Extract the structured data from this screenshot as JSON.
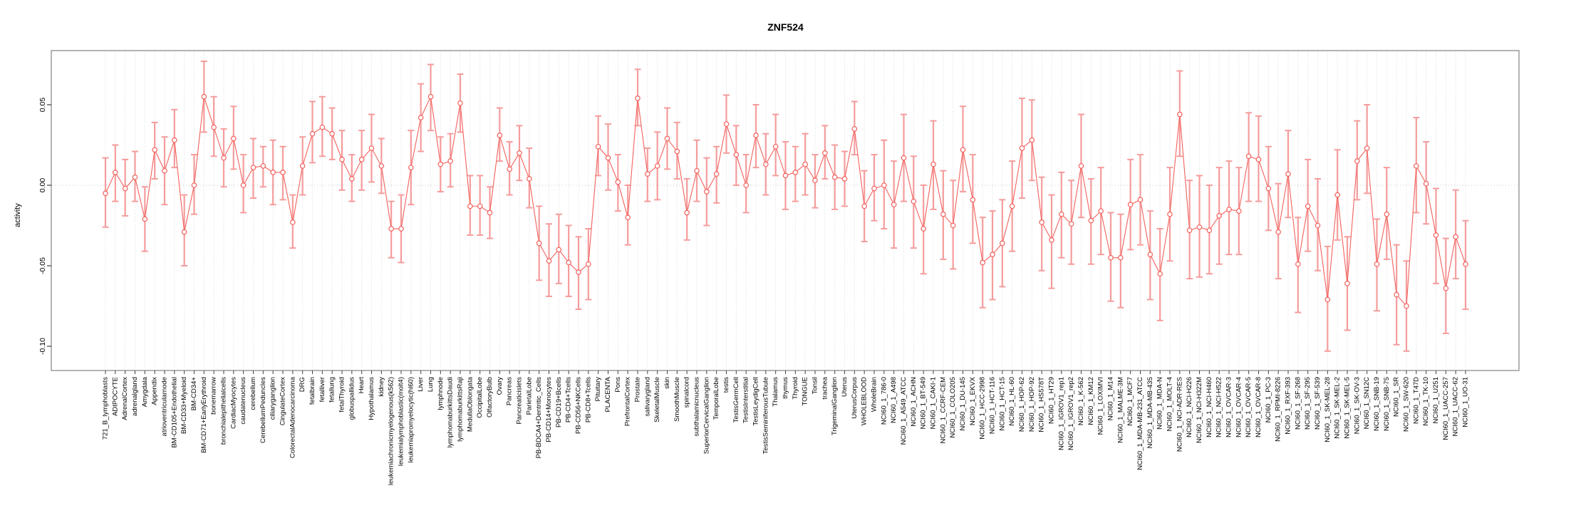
{
  "chart_data": {
    "type": "line",
    "title": "ZNF524",
    "ylabel": "activity",
    "xlabel": "",
    "ylim": [
      -0.115,
      0.084
    ],
    "yticks": [
      0.05,
      0.0,
      -0.05,
      -0.1
    ],
    "ytick_labels": [
      "0.05",
      "0.00",
      "-0.05",
      "-0.10"
    ],
    "grid": "light dotted vertical line per category; dotted horizontal line at 0",
    "legend": "none",
    "point_style": "open circles with error bars, connected by line",
    "series_color": "#f2615c",
    "errorbar_color": "#f59c9c",
    "categories": [
      "721_B_lymphoblasts",
      "ADIPOCYTE",
      "AdrenalCortex",
      "adrenalgland",
      "Amygdala",
      "Appendix",
      "atrioventricularnode",
      "BM-CD105+Endothelial",
      "BM-CD33+Myeloid",
      "BM-CD34+",
      "BM-CD71+EarlyErythroid",
      "bonemarrow",
      "bronchialepithelialcells",
      "CardiacMyocytes",
      "caudatenucleus",
      "cerebellum",
      "CerebellumPeduncles",
      "ciliaryganglion",
      "CingulateCortex",
      "ColorectalAdenocarcinoma",
      "DRG",
      "fetalbrain",
      "fetalliver",
      "fetallung",
      "fetalThyroid",
      "globuspallidus",
      "Heart",
      "Hypothalamus",
      "kidney",
      "leukemiachronicmyelogenous(k562)",
      "leukemialymphoblastic(molt4)",
      "leukemiapromyelocytic(hl60)",
      "Liver",
      "Lung",
      "lymphnode",
      "lymphomaburkittsDaudi",
      "lymphomaburkittsRaji",
      "MedullaOblongata",
      "OccipitalLobe",
      "OlfactoryBulb",
      "Ovary",
      "Pancreas",
      "Pancreaticislets",
      "ParietalLobe",
      "PB-BDCA4+Dentritic_Cells",
      "PB-CD14+Monocytes",
      "PB-CD19+Bcells",
      "PB-CD4+Tcells",
      "PB-CD56+NKCells",
      "PB-CD8+Tcells",
      "Pituitary",
      "PLACENTA",
      "Pons",
      "PrefrontalCortex",
      "Prostate",
      "salivarygland",
      "SkeletalMuscle",
      "skin",
      "SmoothMuscle",
      "spinalcord",
      "subthalamicnucleus",
      "SuperiorCervicalGanglion",
      "TemporalLobe",
      "testis",
      "TestisGermCell",
      "TestisInterstitial",
      "TestisLeydigCell",
      "TestisSeminiferousTubule",
      "Thalamus",
      "thymus",
      "Thyroid",
      "TONGUE",
      "Tonsil",
      "trachea",
      "TrigeminalGanglion",
      "Uterus",
      "UterusCorpus",
      "WHOLEBLOOD",
      "WholeBrain",
      "NCI60_1_786-0",
      "NCI60_1_A498",
      "NCI60_1_A549_ATCC",
      "NCI60_1_ACHN",
      "NCI60_1_BT-549",
      "NCI60_1_CAKI-1",
      "NCI60_1_CCRF-CEM",
      "NCI60_1_COLO205",
      "NCI60_1_DU-145",
      "NCI60_1_EKVX",
      "NCI60_1_HCC-2998",
      "NCI60_1_HCT-116",
      "NCI60_1_HCT-15",
      "NCI60_1_HL-60",
      "NCI60_1_HOP-62",
      "NCI60_1_HOP-92",
      "NCI60_1_HS578T",
      "NCI60_1_HT29",
      "NCI60_1_IGROV1_rep1",
      "NCI60_1_IGROV1_rep2",
      "NCI60_1_K-562",
      "NCI60_1_KM12",
      "NCI60_1_LOXIMVI",
      "NCI60_1_M14",
      "NCI60_1_MALME-3M",
      "NCI60_1_MCF7",
      "NCI60_1_MDA-MB-231_ATCC",
      "NCI60_1_MDA-MB-435",
      "NCI60_1_MDA-N",
      "NCI60_1_MOLT-4",
      "NCI60_1_NCI-ADR-RES",
      "NCI60_1_NCI-H226",
      "NCI60_1_NCI-H322M",
      "NCI60_1_NCI-H460",
      "NCI60_1_NCI-H522",
      "NCI60_1_OVCAR-3",
      "NCI60_1_OVCAR-4",
      "NCI60_1_OVCAR-5",
      "NCI60_1_OVCAR-8",
      "NCI60_1_PC-3",
      "NCI60_1_RPMI-8226",
      "NCI60_1_RXF-393",
      "NCI60_1_SF-268",
      "NCI60_1_SF-295",
      "NCI60_1_SF-539",
      "NCI60_1_SK-MEL-28",
      "NCI60_1_SK-MEL-2",
      "NCI60_1_SK-MEL-5",
      "NCI60_1_SK-OV-3",
      "NCI60_1_SN12C",
      "NCI60_1_SNB-19",
      "NCI60_1_SNB-75",
      "NCI60_1_SR",
      "NCI60_1_SW-620",
      "NCI60_1_T47D",
      "NCI60_1_TK-10",
      "NCI60_1_U251",
      "NCI60_1_UACC-257",
      "NCI60_1_UACC-62",
      "NCI60_1_UO-31"
    ],
    "values": [
      -0.005,
      0.008,
      -0.002,
      0.005,
      -0.021,
      0.022,
      0.009,
      0.028,
      -0.029,
      0.0,
      0.055,
      0.036,
      0.017,
      0.029,
      0.0,
      0.011,
      0.012,
      0.008,
      0.008,
      -0.023,
      0.012,
      0.032,
      0.036,
      0.032,
      0.016,
      0.004,
      0.016,
      0.023,
      0.012,
      -0.027,
      -0.027,
      0.011,
      0.042,
      0.055,
      0.013,
      0.015,
      0.051,
      -0.013,
      -0.013,
      -0.017,
      0.031,
      0.01,
      0.02,
      0.004,
      -0.036,
      -0.047,
      -0.04,
      -0.048,
      -0.054,
      -0.049,
      0.024,
      0.017,
      0.002,
      -0.02,
      0.054,
      0.007,
      0.012,
      0.029,
      0.021,
      -0.017,
      0.009,
      -0.004,
      0.007,
      0.038,
      0.019,
      0.0,
      0.031,
      0.013,
      0.024,
      0.006,
      0.008,
      0.013,
      0.003,
      0.02,
      0.005,
      0.004,
      0.035,
      -0.013,
      -0.002,
      0.0,
      -0.012,
      0.017,
      -0.01,
      -0.027,
      0.013,
      -0.018,
      -0.025,
      0.022,
      -0.009,
      -0.048,
      -0.043,
      -0.036,
      -0.013,
      0.023,
      0.028,
      -0.023,
      -0.034,
      -0.018,
      -0.024,
      0.012,
      -0.022,
      -0.016,
      -0.045,
      -0.045,
      -0.012,
      -0.009,
      -0.043,
      -0.055,
      -0.018,
      0.044,
      -0.028,
      -0.026,
      -0.028,
      -0.019,
      -0.015,
      -0.016,
      0.018,
      0.016,
      -0.002,
      -0.029,
      0.007,
      -0.049,
      -0.013,
      -0.025,
      -0.071,
      -0.006,
      -0.061,
      0.015,
      0.023,
      -0.049,
      -0.018,
      -0.068,
      -0.075,
      0.012,
      0.001,
      -0.031,
      -0.064,
      -0.032,
      -0.049
    ],
    "err_lo": [
      -0.026,
      -0.01,
      -0.019,
      -0.01,
      -0.041,
      0.004,
      -0.012,
      0.011,
      -0.05,
      -0.018,
      0.033,
      0.018,
      -0.001,
      0.01,
      -0.017,
      -0.008,
      -0.001,
      -0.012,
      -0.009,
      -0.039,
      -0.006,
      0.014,
      0.018,
      0.016,
      -0.003,
      -0.01,
      -0.003,
      0.002,
      -0.005,
      -0.045,
      -0.048,
      -0.012,
      0.021,
      0.034,
      -0.004,
      -0.001,
      0.033,
      -0.031,
      -0.031,
      -0.033,
      0.015,
      -0.006,
      0.003,
      -0.014,
      -0.059,
      -0.069,
      -0.061,
      -0.069,
      -0.077,
      -0.071,
      0.006,
      -0.003,
      -0.016,
      -0.037,
      0.037,
      -0.01,
      -0.009,
      0.01,
      0.004,
      -0.034,
      -0.01,
      -0.025,
      -0.011,
      0.02,
      0.0,
      -0.017,
      0.011,
      -0.006,
      0.006,
      -0.015,
      -0.01,
      -0.006,
      -0.014,
      0.004,
      -0.015,
      -0.013,
      0.019,
      -0.035,
      -0.022,
      -0.027,
      -0.039,
      -0.01,
      -0.039,
      -0.055,
      -0.015,
      -0.046,
      -0.052,
      -0.004,
      -0.036,
      -0.076,
      -0.071,
      -0.063,
      -0.041,
      -0.008,
      0.003,
      -0.053,
      -0.064,
      -0.045,
      -0.049,
      -0.02,
      -0.049,
      -0.043,
      -0.072,
      -0.076,
      -0.04,
      -0.037,
      -0.071,
      -0.084,
      -0.047,
      0.018,
      -0.058,
      -0.057,
      -0.055,
      -0.049,
      -0.043,
      -0.043,
      -0.01,
      -0.01,
      -0.028,
      -0.058,
      -0.02,
      -0.079,
      -0.041,
      -0.053,
      -0.103,
      -0.034,
      -0.09,
      -0.009,
      -0.005,
      -0.078,
      -0.046,
      -0.099,
      -0.103,
      -0.017,
      -0.024,
      -0.061,
      -0.092,
      -0.058,
      -0.077
    ],
    "err_hi": [
      0.017,
      0.025,
      0.016,
      0.021,
      -0.001,
      0.039,
      0.03,
      0.047,
      -0.006,
      0.019,
      0.077,
      0.055,
      0.035,
      0.049,
      0.019,
      0.029,
      0.024,
      0.028,
      0.024,
      -0.006,
      0.03,
      0.052,
      0.055,
      0.048,
      0.034,
      0.019,
      0.034,
      0.044,
      0.029,
      -0.01,
      -0.006,
      0.034,
      0.063,
      0.075,
      0.03,
      0.032,
      0.069,
      0.006,
      0.006,
      -0.001,
      0.048,
      0.027,
      0.037,
      0.023,
      -0.013,
      -0.024,
      -0.018,
      -0.025,
      -0.032,
      -0.027,
      0.043,
      0.038,
      0.019,
      0.0,
      0.072,
      0.023,
      0.033,
      0.048,
      0.039,
      0.004,
      0.028,
      0.017,
      0.024,
      0.056,
      0.037,
      0.019,
      0.05,
      0.032,
      0.044,
      0.027,
      0.024,
      0.032,
      0.019,
      0.037,
      0.025,
      0.021,
      0.052,
      0.009,
      0.019,
      0.028,
      0.015,
      0.044,
      0.018,
      0.0,
      0.04,
      0.009,
      0.003,
      0.049,
      0.019,
      -0.02,
      -0.016,
      -0.009,
      0.015,
      0.054,
      0.053,
      0.005,
      -0.006,
      0.008,
      0.003,
      0.044,
      0.004,
      0.011,
      -0.017,
      -0.018,
      0.016,
      0.019,
      -0.016,
      -0.027,
      0.011,
      0.071,
      0.003,
      0.006,
      0.0,
      0.011,
      0.015,
      0.011,
      0.045,
      0.043,
      0.024,
      0.001,
      0.034,
      -0.02,
      0.016,
      0.004,
      -0.038,
      0.022,
      -0.032,
      0.04,
      0.05,
      -0.021,
      0.011,
      -0.037,
      -0.047,
      0.042,
      0.027,
      -0.002,
      -0.033,
      -0.003,
      -0.022
    ]
  }
}
